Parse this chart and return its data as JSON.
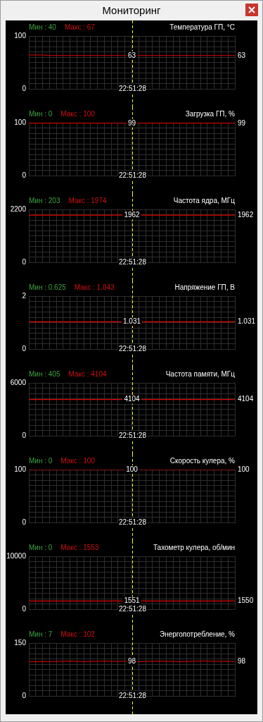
{
  "chart_data": [
    {
      "type": "line",
      "subtitle": "Мониторинг",
      "title": "Температура ГП, °C",
      "annotations": [
        "Мин : 40",
        "Макс : 67",
        "22:51:28"
      ],
      "categories": [
        null,
        null,
        null,
        null,
        null,
        null,
        null,
        null,
        null,
        null,
        null,
        null,
        null,
        null,
        null,
        null,
        null,
        null,
        null,
        null,
        null,
        null,
        null,
        null,
        null,
        null,
        null,
        null,
        null,
        null,
        null
      ],
      "ylim": [
        0,
        100
      ],
      "yticks": [
        0,
        {
          "value": 10,
          "label": null
        },
        {
          "value": 20,
          "label": null
        },
        {
          "value": 30,
          "label": null
        },
        {
          "value": 40,
          "label": null
        },
        {
          "value": 50,
          "label": null
        },
        {
          "value": 60,
          "label": null
        },
        {
          "value": 70,
          "label": null
        },
        {
          "value": 80,
          "label": null
        },
        {
          "value": 90,
          "label": null
        },
        100
      ],
      "grid": true,
      "marker": "none",
      "line_style": "solid",
      "series": [
        {
          "color": "#e00000",
          "values": [
            64,
            64,
            64,
            63,
            63,
            63,
            63,
            63,
            63,
            63,
            63,
            63,
            63,
            63,
            63,
            63,
            63,
            63,
            63,
            63,
            63,
            63,
            63,
            63,
            63,
            63,
            63,
            63,
            63,
            63,
            63
          ],
          "value_labels": [
            null,
            null,
            null,
            null,
            null,
            null,
            null,
            null,
            null,
            null,
            null,
            null,
            null,
            null,
            null,
            "63",
            null,
            null,
            null,
            null,
            null,
            null,
            null,
            null,
            null,
            null,
            null,
            null,
            null,
            null,
            "63"
          ]
        }
      ]
    },
    {
      "type": "line",
      "title": "Загрузка ГП, %",
      "annotations": [
        "Мин : 0",
        "Макс : 100",
        "22:51:28"
      ],
      "categories": [
        null,
        null,
        null,
        null,
        null,
        null,
        null,
        null,
        null,
        null,
        null,
        null,
        null,
        null,
        null,
        null,
        null,
        null,
        null,
        null,
        null,
        null,
        null,
        null,
        null,
        null,
        null,
        null,
        null,
        null,
        null
      ],
      "ylim": [
        0,
        100
      ],
      "yticks": [
        0,
        {
          "value": 10,
          "label": null
        },
        {
          "value": 20,
          "label": null
        },
        {
          "value": 30,
          "label": null
        },
        {
          "value": 40,
          "label": null
        },
        {
          "value": 50,
          "label": null
        },
        {
          "value": 60,
          "label": null
        },
        {
          "value": 70,
          "label": null
        },
        {
          "value": 80,
          "label": null
        },
        {
          "value": 90,
          "label": null
        },
        100
      ],
      "grid": true,
      "marker": "none",
      "line_style": "solid",
      "series": [
        {
          "color": "#e00000",
          "values": [
            99,
            99,
            99,
            99,
            99,
            99,
            99,
            99,
            99,
            99,
            99,
            99,
            99,
            99,
            99,
            99,
            99,
            99,
            99,
            99,
            99,
            99,
            99,
            99,
            99,
            99,
            99,
            99,
            99,
            99,
            99
          ],
          "value_labels": [
            null,
            null,
            null,
            null,
            null,
            null,
            null,
            null,
            null,
            null,
            null,
            null,
            null,
            null,
            null,
            "99",
            null,
            null,
            null,
            null,
            null,
            null,
            null,
            null,
            null,
            null,
            null,
            null,
            null,
            null,
            "99"
          ]
        }
      ]
    },
    {
      "type": "line",
      "title": "Частота ядра, МГц",
      "annotations": [
        "Мин : 203",
        "Макс : 1974",
        "22:51:28"
      ],
      "categories": [
        null,
        null,
        null,
        null,
        null,
        null,
        null,
        null,
        null,
        null,
        null,
        null,
        null,
        null,
        null,
        null,
        null,
        null,
        null,
        null,
        null,
        null,
        null,
        null,
        null,
        null,
        null,
        null,
        null,
        null,
        null
      ],
      "ylim": [
        0,
        2200
      ],
      "yticks": [
        0,
        {
          "value": 220,
          "label": null
        },
        {
          "value": 440,
          "label": null
        },
        {
          "value": 660,
          "label": null
        },
        {
          "value": 880,
          "label": null
        },
        {
          "value": 1100,
          "label": null
        },
        {
          "value": 1320,
          "label": null
        },
        {
          "value": 1540,
          "label": null
        },
        {
          "value": 1760,
          "label": null
        },
        {
          "value": 1980,
          "label": null
        },
        2200
      ],
      "grid": true,
      "marker": "none",
      "line_style": "solid",
      "series": [
        {
          "color": "#e00000",
          "values": [
            1962,
            1962,
            1962,
            1962,
            1962,
            1962,
            1962,
            1962,
            1962,
            1962,
            1962,
            1962,
            1962,
            1962,
            1962,
            1962,
            1962,
            1962,
            1962,
            1962,
            1962,
            1962,
            1962,
            1962,
            1962,
            1962,
            1962,
            1962,
            1962,
            1962,
            1962
          ],
          "value_labels": [
            null,
            null,
            null,
            null,
            null,
            null,
            null,
            null,
            null,
            null,
            null,
            null,
            null,
            null,
            null,
            "1962",
            null,
            null,
            null,
            null,
            null,
            null,
            null,
            null,
            null,
            null,
            null,
            null,
            null,
            null,
            "1962"
          ]
        }
      ]
    },
    {
      "type": "line",
      "title": "Напряжение ГП, В",
      "annotations": [
        "Мин : 0.625",
        "Макс : 1.043",
        "22:51:28"
      ],
      "categories": [
        null,
        null,
        null,
        null,
        null,
        null,
        null,
        null,
        null,
        null,
        null,
        null,
        null,
        null,
        null,
        null,
        null,
        null,
        null,
        null,
        null,
        null,
        null,
        null,
        null,
        null,
        null,
        null,
        null,
        null,
        null
      ],
      "ylim": [
        0,
        2
      ],
      "yticks": [
        0,
        {
          "value": 0.2,
          "label": null
        },
        {
          "value": 0.4,
          "label": null
        },
        {
          "value": 0.6,
          "label": null
        },
        {
          "value": 0.8,
          "label": null
        },
        {
          "value": 1,
          "label": null
        },
        {
          "value": 1.2,
          "label": null
        },
        {
          "value": 1.4,
          "label": null
        },
        {
          "value": 1.6,
          "label": null
        },
        {
          "value": 1.8,
          "label": null
        },
        2
      ],
      "grid": true,
      "marker": "none",
      "line_style": "solid",
      "series": [
        {
          "color": "#e00000",
          "values": [
            1.031,
            1.031,
            1.031,
            1.031,
            1.031,
            1.031,
            1.031,
            1.031,
            1.031,
            1.031,
            1.031,
            1.031,
            1.031,
            1.031,
            null,
            1.031,
            null,
            1.031,
            1.031,
            1.031,
            1.031,
            1.031,
            1.031,
            1.031,
            1.031,
            1.031,
            1.031,
            1.031,
            1.031,
            1.031,
            1.031
          ],
          "value_labels": [
            null,
            null,
            null,
            null,
            null,
            null,
            null,
            null,
            null,
            null,
            null,
            null,
            null,
            null,
            null,
            "1.031",
            null,
            null,
            null,
            null,
            null,
            null,
            null,
            null,
            null,
            null,
            null,
            null,
            null,
            null,
            "1.031"
          ]
        }
      ]
    },
    {
      "type": "line",
      "title": "Частота памяти, МГц",
      "annotations": [
        "Мин : 405",
        "Макс : 4104",
        "22:51:28"
      ],
      "categories": [
        null,
        null,
        null,
        null,
        null,
        null,
        null,
        null,
        null,
        null,
        null,
        null,
        null,
        null,
        null,
        null,
        null,
        null,
        null,
        null,
        null,
        null,
        null,
        null,
        null,
        null,
        null,
        null,
        null,
        null,
        null
      ],
      "ylim": [
        0,
        6000
      ],
      "yticks": [
        0,
        {
          "value": 600,
          "label": null
        },
        {
          "value": 1200,
          "label": null
        },
        {
          "value": 1800,
          "label": null
        },
        {
          "value": 2400,
          "label": null
        },
        {
          "value": 3000,
          "label": null
        },
        {
          "value": 3600,
          "label": null
        },
        {
          "value": 4200,
          "label": null
        },
        {
          "value": 4800,
          "label": null
        },
        {
          "value": 5400,
          "label": null
        },
        6000
      ],
      "grid": true,
      "marker": "none",
      "line_style": "solid",
      "series": [
        {
          "color": "#e00000",
          "values": [
            4104,
            4104,
            4104,
            4104,
            4104,
            4104,
            4104,
            4104,
            4104,
            4104,
            4104,
            4104,
            4104,
            4104,
            4104,
            4104,
            4104,
            4104,
            4104,
            4104,
            4104,
            4104,
            4104,
            4104,
            4104,
            4104,
            4104,
            4104,
            4104,
            4104,
            4104
          ],
          "value_labels": [
            null,
            null,
            null,
            null,
            null,
            null,
            null,
            null,
            null,
            null,
            null,
            null,
            null,
            null,
            null,
            "4104",
            null,
            null,
            null,
            null,
            null,
            null,
            null,
            null,
            null,
            null,
            null,
            null,
            null,
            null,
            "4104"
          ]
        }
      ]
    },
    {
      "type": "line",
      "title": "Скорость кулера, %",
      "annotations": [
        "Мин : 0",
        "Макс : 100",
        "22:51:28"
      ],
      "categories": [
        null,
        null,
        null,
        null,
        null,
        null,
        null,
        null,
        null,
        null,
        null,
        null,
        null,
        null,
        null,
        null,
        null,
        null,
        null,
        null,
        null,
        null,
        null,
        null,
        null,
        null,
        null,
        null,
        null,
        null,
        null
      ],
      "ylim": [
        0,
        100
      ],
      "yticks": [
        0,
        {
          "value": 10,
          "label": null
        },
        {
          "value": 20,
          "label": null
        },
        {
          "value": 30,
          "label": null
        },
        {
          "value": 40,
          "label": null
        },
        {
          "value": 50,
          "label": null
        },
        {
          "value": 60,
          "label": null
        },
        {
          "value": 70,
          "label": null
        },
        {
          "value": 80,
          "label": null
        },
        {
          "value": 90,
          "label": null
        },
        100
      ],
      "grid": true,
      "marker": "none",
      "line_style": "solid",
      "series": [
        {
          "color": "#e00000",
          "values": [
            100,
            100,
            100,
            100,
            100,
            100,
            100,
            100,
            100,
            100,
            100,
            100,
            100,
            100,
            100,
            100,
            100,
            100,
            100,
            100,
            100,
            100,
            100,
            100,
            100,
            100,
            100,
            100,
            100,
            100,
            100
          ],
          "value_labels": [
            null,
            null,
            null,
            null,
            null,
            null,
            null,
            null,
            null,
            null,
            null,
            null,
            null,
            null,
            null,
            "100",
            null,
            null,
            null,
            null,
            null,
            null,
            null,
            null,
            null,
            null,
            null,
            null,
            null,
            null,
            "100"
          ]
        }
      ]
    },
    {
      "type": "line",
      "title": "Тахометр кулера, об/мин",
      "annotations": [
        "Мин : 0",
        "Макс : 1553",
        "22:51:28"
      ],
      "categories": [
        null,
        null,
        null,
        null,
        null,
        null,
        null,
        null,
        null,
        null,
        null,
        null,
        null,
        null,
        null,
        null,
        null,
        null,
        null,
        null,
        null,
        null,
        null,
        null,
        null,
        null,
        null,
        null,
        null,
        null,
        null
      ],
      "ylim": [
        0,
        10000
      ],
      "yticks": [
        0,
        {
          "value": 1000,
          "label": null
        },
        {
          "value": 2000,
          "label": null
        },
        {
          "value": 3000,
          "label": null
        },
        {
          "value": 4000,
          "label": null
        },
        {
          "value": 5000,
          "label": null
        },
        {
          "value": 6000,
          "label": null
        },
        {
          "value": 7000,
          "label": null
        },
        {
          "value": 8000,
          "label": null
        },
        {
          "value": 9000,
          "label": null
        },
        10000
      ],
      "grid": true,
      "marker": "none",
      "line_style": "solid",
      "series": [
        {
          "color": "#e00000",
          "values": [
            1551,
            1551,
            1551,
            1551,
            1551,
            1551,
            1551,
            1551,
            1551,
            1551,
            1551,
            1551,
            1551,
            1551,
            1551,
            1551,
            1551,
            1551,
            1551,
            1551,
            1551,
            1551,
            1551,
            1551,
            1551,
            1551,
            1551,
            1551,
            1551,
            1551,
            1550
          ],
          "value_labels": [
            null,
            null,
            null,
            null,
            null,
            null,
            null,
            null,
            null,
            null,
            null,
            null,
            null,
            null,
            null,
            "1551",
            null,
            null,
            null,
            null,
            null,
            null,
            null,
            null,
            null,
            null,
            null,
            null,
            null,
            null,
            "1550"
          ]
        }
      ]
    },
    {
      "type": "line",
      "title": "Энергопотребление, %",
      "annotations": [
        "Мин : 7",
        "Макс : 102",
        "22:51:28"
      ],
      "categories": [
        null,
        null,
        null,
        null,
        null,
        null,
        null,
        null,
        null,
        null,
        null,
        null,
        null,
        null,
        null,
        null,
        null,
        null,
        null,
        null,
        null,
        null,
        null,
        null,
        null,
        null,
        null,
        null,
        null,
        null,
        null
      ],
      "ylim": [
        0,
        150
      ],
      "yticks": [
        0,
        {
          "value": 15,
          "label": null
        },
        {
          "value": 30,
          "label": null
        },
        {
          "value": 45,
          "label": null
        },
        {
          "value": 60,
          "label": null
        },
        {
          "value": 75,
          "label": null
        },
        {
          "value": 90,
          "label": null
        },
        {
          "value": 105,
          "label": null
        },
        {
          "value": 120,
          "label": null
        },
        {
          "value": 135,
          "label": null
        },
        150
      ],
      "grid": true,
      "marker": "none",
      "line_style": "solid",
      "series": [
        {
          "color": "#e00000",
          "values": [
            97,
            97,
            98,
            97,
            98,
            98,
            99,
            98,
            97,
            98,
            98,
            99,
            98,
            98,
            98,
            98,
            97,
            98,
            98,
            99,
            98,
            98,
            97,
            98,
            98,
            99,
            99,
            98,
            98,
            98,
            98
          ],
          "value_labels": [
            null,
            null,
            null,
            null,
            null,
            null,
            null,
            null,
            null,
            null,
            null,
            null,
            null,
            null,
            null,
            "98",
            null,
            null,
            null,
            null,
            null,
            null,
            null,
            null,
            null,
            null,
            null,
            null,
            null,
            null,
            "98"
          ]
        }
      ]
    }
  ]
}
